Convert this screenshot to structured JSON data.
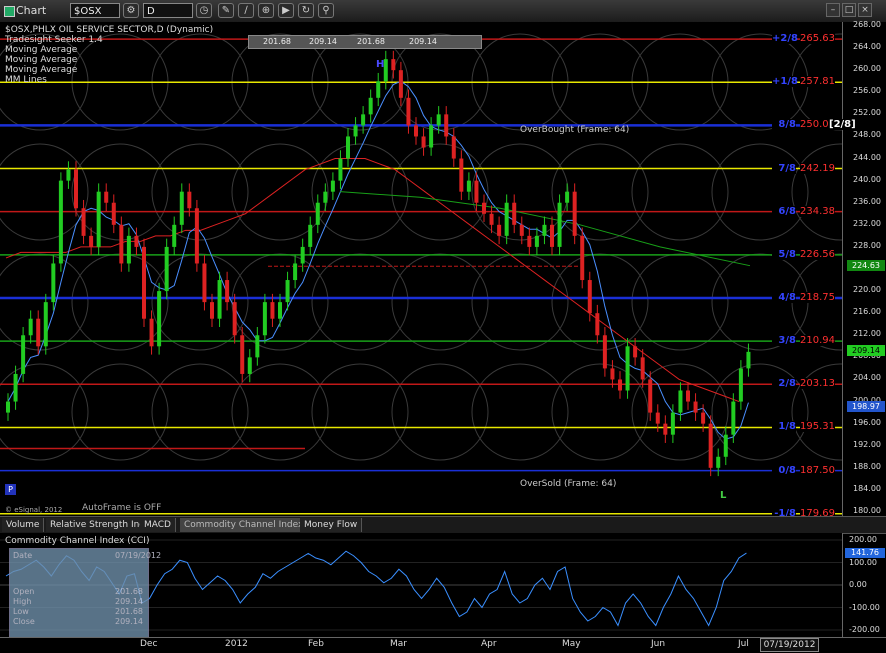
{
  "toolbar": {
    "title": "Chart",
    "symbol": "$OSX",
    "interval": "D"
  },
  "legend": [
    "$OSX,PHLX OIL SERVICE SECTOR,D (Dynamic)",
    "Tradesight Seeker 1.4",
    "Moving Average",
    "Moving Average",
    "Moving Average",
    "MM Lines"
  ],
  "ohlc_strip": [
    "201.68",
    "209.14",
    "201.68",
    "209.14"
  ],
  "annotations": {
    "overbought": "OverBought (Frame: 64)",
    "oversold": "OverSold (Frame: 64)",
    "autoframe": "AutoFrame is OFF",
    "copyright": "© eSignal, 2012",
    "mm_bracket": "[2/8]",
    "high_marker": "H",
    "low_marker": "L",
    "p_badge": "P"
  },
  "colors": {
    "up": "#22cc22",
    "down": "#dd2222",
    "blue": "#1a2fd6",
    "yellow": "#e8e800",
    "red": "#c01818",
    "green": "#18a018"
  },
  "mm_levels": [
    {
      "label": "+2/8",
      "value": "265.63",
      "price": 265.63,
      "color": "#c01818",
      "text_color": "#ff3030"
    },
    {
      "label": "+1/8",
      "value": "257.81",
      "price": 257.81,
      "color": "#e8e800",
      "text_color": "#ff3030"
    },
    {
      "label": "8/8",
      "value": "250.0",
      "price": 250.0,
      "color": "#1a2fd6",
      "text_color": "#ff3030"
    },
    {
      "label": "7/8",
      "value": "242.19",
      "price": 242.19,
      "color": "#e8e800",
      "text_color": "#ff3030"
    },
    {
      "label": "6/8",
      "value": "234.38",
      "price": 234.38,
      "color": "#c01818",
      "text_color": "#ff3030"
    },
    {
      "label": "5/8",
      "value": "226.56",
      "price": 226.56,
      "color": "#18a018",
      "text_color": "#ff3030"
    },
    {
      "label": "4/8",
      "value": "218.75",
      "price": 218.75,
      "color": "#1a2fd6",
      "text_color": "#ff3030"
    },
    {
      "label": "3/8",
      "value": "210.94",
      "price": 210.94,
      "color": "#18a018",
      "text_color": "#ff3030"
    },
    {
      "label": "2/8",
      "value": "203.13",
      "price": 203.13,
      "color": "#c01818",
      "text_color": "#ff3030"
    },
    {
      "label": "1/8",
      "value": "195.31",
      "price": 195.31,
      "color": "#e8e800",
      "text_color": "#ff3030"
    },
    {
      "label": "0/8",
      "value": "187.50",
      "price": 187.5,
      "color": "#1a2fd6",
      "text_color": "#ff3030"
    },
    {
      "label": "-1/8",
      "value": "179.69",
      "price": 179.69,
      "color": "#e8e800",
      "text_color": "#ff3030"
    }
  ],
  "price_axis": {
    "ticks": [
      "268.00",
      "264.00",
      "260.00",
      "256.00",
      "252.00",
      "248.00",
      "244.00",
      "240.00",
      "236.00",
      "232.00",
      "228.00",
      "224.00",
      "220.00",
      "216.00",
      "212.00",
      "208.00",
      "204.00",
      "200.00",
      "196.00",
      "192.00",
      "188.00",
      "184.00",
      "180.00"
    ],
    "tag_ma_green": "224.63",
    "tag_price": "209.14",
    "tag_ma_blue": "198.97"
  },
  "tabs": [
    "Volume",
    "Relative Strength Index",
    "MACD",
    "Commodity Channel Index (CCI)",
    "Money Flow"
  ],
  "cci": {
    "title": "Commodity Channel Index (CCI)",
    "ticks": [
      "200.00",
      "100.00",
      "0.00",
      "-100.00",
      "-200.00"
    ],
    "current": "141.76"
  },
  "data_panel": [
    {
      "label": "Date",
      "value": "07/19/2012"
    },
    {
      "label": "Open",
      "value": "201.68"
    },
    {
      "label": "High",
      "value": "209.14"
    },
    {
      "label": "Low",
      "value": "201.68"
    },
    {
      "label": "Close",
      "value": "209.14"
    }
  ],
  "time_axis": [
    "Dec",
    "2012",
    "Feb",
    "Mar",
    "Apr",
    "May",
    "Jun",
    "Jul"
  ],
  "time_box": "07/19/2012",
  "chart_data": {
    "type": "candlestick",
    "y_range": [
      180,
      268
    ],
    "close": [
      200,
      205,
      212,
      215,
      210,
      218,
      225,
      240,
      242,
      235,
      230,
      228,
      238,
      236,
      232,
      225,
      230,
      228,
      215,
      210,
      220,
      228,
      232,
      238,
      235,
      225,
      218,
      215,
      222,
      218,
      212,
      205,
      208,
      212,
      218,
      215,
      218,
      222,
      225,
      228,
      232,
      236,
      238,
      240,
      244,
      248,
      250,
      252,
      255,
      258,
      262,
      260,
      255,
      250,
      248,
      246,
      250,
      252,
      248,
      244,
      238,
      240,
      236,
      234,
      232,
      230,
      236,
      232,
      230,
      228,
      230,
      232,
      228,
      236,
      238,
      230,
      222,
      216,
      212,
      206,
      204,
      202,
      210,
      208,
      204,
      198,
      196,
      194,
      198,
      202,
      200,
      198,
      196,
      188,
      190,
      194,
      200,
      206,
      209
    ],
    "ma_red": [
      226,
      227,
      227,
      227,
      227,
      228,
      228,
      228,
      229,
      229,
      230,
      230,
      231,
      231,
      232,
      233,
      234,
      236,
      238,
      240,
      242,
      243,
      244,
      244,
      244,
      243,
      242,
      240,
      238,
      236,
      234,
      232,
      230,
      228,
      226,
      224,
      222,
      220,
      218,
      216,
      214,
      212,
      210,
      208,
      206,
      204,
      203,
      202,
      201,
      200
    ],
    "cci": [
      40,
      60,
      70,
      90,
      110,
      80,
      40,
      90,
      130,
      110,
      60,
      20,
      80,
      60,
      10,
      -40,
      40,
      50,
      -80,
      -60,
      0,
      50,
      70,
      110,
      100,
      30,
      -20,
      10,
      40,
      20,
      -20,
      -80,
      -40,
      -10,
      50,
      30,
      60,
      80,
      100,
      120,
      140,
      120,
      110,
      90,
      120,
      150,
      130,
      100,
      60,
      40,
      10,
      30,
      70,
      40,
      -20,
      -60,
      -20,
      30,
      -10,
      -80,
      -140,
      -120,
      -60,
      -100,
      -40,
      -20,
      60,
      -40,
      -80,
      -60,
      0,
      30,
      -20,
      60,
      80,
      -60,
      -120,
      -160,
      -140,
      -100,
      -120,
      -180,
      -80,
      -40,
      -80,
      -140,
      -180,
      -100,
      -40,
      40,
      -20,
      -60,
      -120,
      -180,
      -100,
      20,
      60,
      120,
      141.76
    ]
  }
}
